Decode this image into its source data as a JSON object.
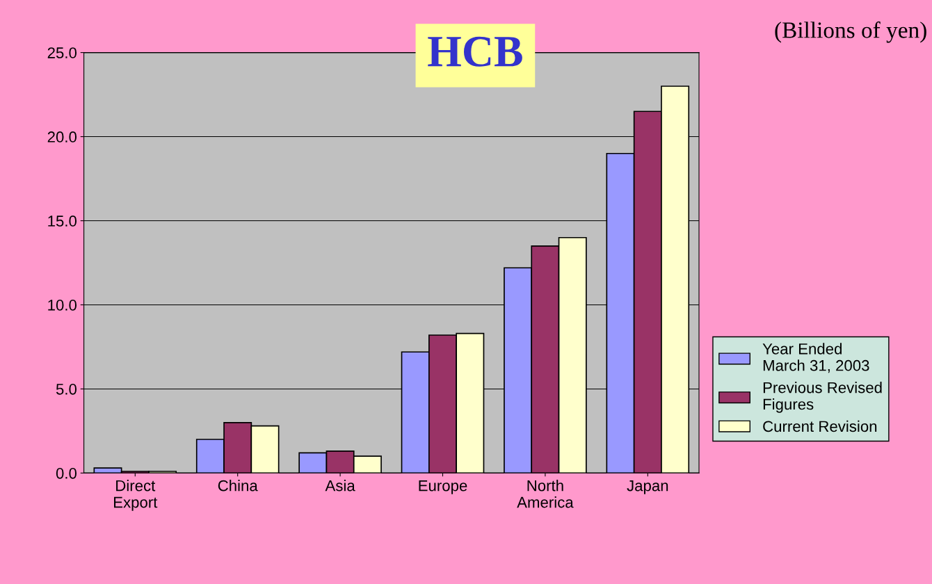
{
  "chart_data": {
    "type": "bar",
    "title": "HCB",
    "annotations": [
      "(Billions of yen)"
    ],
    "categories": [
      "Direct\nExport",
      "China",
      "Asia",
      "Europe",
      "North\nAmerica",
      "Japan"
    ],
    "series": [
      {
        "name": "Year Ended\nMarch 31, 2003",
        "color": "#9999ff",
        "values": [
          0.3,
          2.0,
          1.2,
          7.2,
          12.2,
          19.0
        ]
      },
      {
        "name": "Previous Revised\nFigures",
        "color": "#993366",
        "values": [
          0.1,
          3.0,
          1.3,
          8.2,
          13.5,
          21.5
        ]
      },
      {
        "name": "Current Revision",
        "color": "#ffffcc",
        "values": [
          0.1,
          2.8,
          1.0,
          8.3,
          14.0,
          23.0
        ]
      }
    ],
    "ylim": [
      0,
      25
    ],
    "yticks": [
      {
        "value": 0,
        "label": "0.0"
      },
      {
        "value": 5,
        "label": "5.0"
      },
      {
        "value": 10,
        "label": "10.0"
      },
      {
        "value": 15,
        "label": "15.0"
      },
      {
        "value": 20,
        "label": "20.0"
      },
      {
        "value": 25,
        "label": "25.0"
      }
    ],
    "grid": "y",
    "legend": "right"
  }
}
